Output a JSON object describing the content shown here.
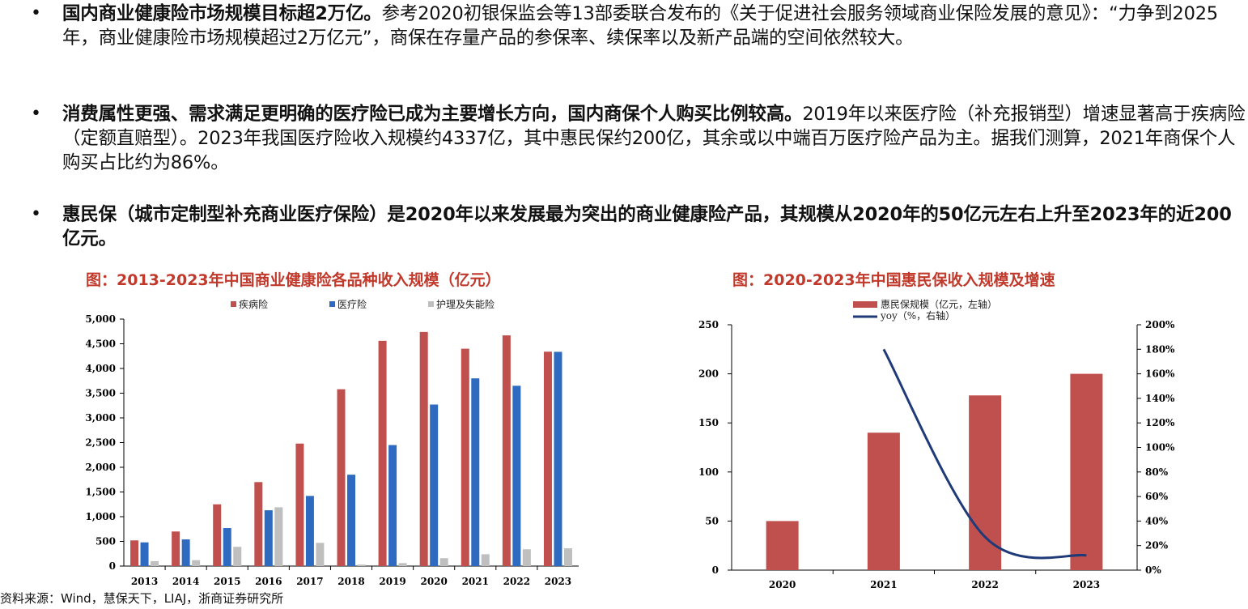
{
  "bullets": [
    {
      "bold": "国内商业健康险市场规模目标超2万亿。",
      "normal": "参考2020初银保监会等13部委联合发布的《关于促进社会服务领域商业保险发展的意见》：“力争到2025年，商业健康险市场规模超过2万亿元”，商保在存量产品的参保率、续保率以及新产品端的空间依然较大。"
    },
    {
      "bold": "消费属性更强、需求满足更明确的医疗险已成为主要增长方向，国内商保个人购买比例较高。",
      "normal": "2019年以来医疗险（补充报销型）增速显著高于疾病险（定额直赔型）。2023年我国医疗险收入规模约4337亿，其中惠民保约200亿，其余或以中端百万医疗险产品为主。据我们测算，2021年商保个人购买占比约为86%。"
    },
    {
      "bold": "惠民保（城市定制型补充商业医疗保险）是2020年以来发展最为突出的商业健康险产品，其规模从2020年的50亿元左右上升至2023年的近200亿元。",
      "normal": ""
    }
  ],
  "source": "资料来源：Wind，慧保天下，LIAJ，浙商证券研究所",
  "chart_data": [
    {
      "type": "bar",
      "title": "图：2013-2023年中国商业健康险各品种收入规模（亿元）",
      "categories": [
        "2013",
        "2014",
        "2015",
        "2016",
        "2017",
        "2018",
        "2019",
        "2020",
        "2021",
        "2022",
        "2023"
      ],
      "series": [
        {
          "name": "疾病险",
          "color": "#c0504d",
          "values": [
            520,
            700,
            1250,
            1700,
            2480,
            3580,
            4560,
            4740,
            4400,
            4670,
            4340
          ]
        },
        {
          "name": "医疗险",
          "color": "#2e6bc0",
          "values": [
            480,
            540,
            770,
            1130,
            1420,
            1850,
            2450,
            3270,
            3800,
            3650,
            4337
          ]
        },
        {
          "name": "护理及失能险",
          "color": "#bfbfbf",
          "values": [
            100,
            120,
            390,
            1190,
            470,
            30,
            60,
            160,
            240,
            340,
            360
          ]
        }
      ],
      "ylim": [
        0,
        5000
      ],
      "yticks": [
        "0",
        "500",
        "1,000",
        "1,500",
        "2,000",
        "2,500",
        "3,000",
        "3,500",
        "4,000",
        "4,500",
        "5,000"
      ],
      "legend": "top-center",
      "grid": false
    },
    {
      "type": "bar+line",
      "title": "图：2020-2023年中国惠民保收入规模及增速",
      "categories": [
        "2020",
        "2021",
        "2022",
        "2023"
      ],
      "bar_series": {
        "name": "惠民保规模（亿元，左轴）",
        "color": "#c0504d",
        "values": [
          50,
          140,
          178,
          200
        ]
      },
      "line_series": {
        "name": "yoy（%，右轴）",
        "color": "#1f3a78",
        "values": [
          null,
          180,
          27,
          12
        ]
      },
      "ylim_left": [
        0,
        250
      ],
      "yticks_left": [
        "0",
        "50",
        "100",
        "150",
        "200",
        "250"
      ],
      "ylim_right": [
        0,
        200
      ],
      "yticks_right": [
        "0%",
        "20%",
        "40%",
        "60%",
        "80%",
        "100%",
        "120%",
        "140%",
        "160%",
        "180%",
        "200%"
      ],
      "legend": "top-left",
      "grid": false
    }
  ]
}
